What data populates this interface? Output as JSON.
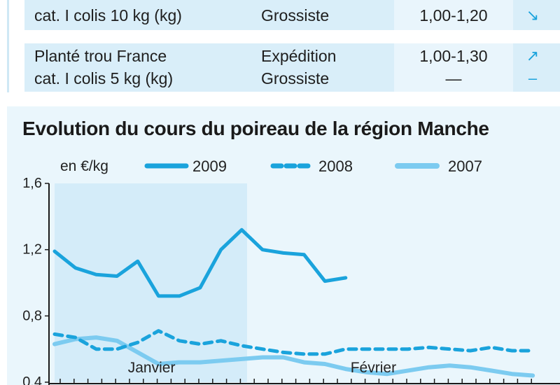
{
  "table": {
    "rows": [
      {
        "product_lines": [
          "cat. I colis 10 kg (kg)"
        ],
        "stage_lines": [
          "Grossiste"
        ],
        "price_lines": [
          "1,00-1,20"
        ],
        "trend_lines": [
          "↘"
        ]
      },
      {
        "product_lines": [
          "Planté trou France",
          "cat. I colis 5 kg (kg)"
        ],
        "stage_lines": [
          "Expédition",
          "Grossiste"
        ],
        "price_lines": [
          "1,00-1,30",
          "—"
        ],
        "trend_lines": [
          "↗",
          "–"
        ]
      }
    ]
  },
  "chart_data": {
    "type": "line",
    "title": "Evolution du cours du poireau de la région Manche",
    "unit_label": "en €/kg",
    "ylim": [
      0.4,
      1.6
    ],
    "yticks": [
      "1,6",
      "1,2",
      "0,8",
      "0,4"
    ],
    "ytick_values": [
      1.6,
      1.2,
      0.8,
      0.4
    ],
    "x_period_labels": [
      "Janvier",
      "Février"
    ],
    "x_period_centers": [
      7,
      23
    ],
    "x_count": 35,
    "legend_position": "top",
    "colors": {
      "2009": "#1aa3dc",
      "2008": "#1aa3dc",
      "2007": "#7ccbf0",
      "shade": "#d4ecf9"
    },
    "series": [
      {
        "name": "2009",
        "style": "solid",
        "x": [
          0,
          1.5,
          3,
          4.5,
          6,
          7.5,
          9,
          10.5,
          12,
          13.5,
          15,
          16.5,
          18,
          19.5,
          21
        ],
        "values": [
          1.19,
          1.09,
          1.05,
          1.04,
          1.13,
          0.92,
          0.92,
          0.97,
          1.2,
          1.32,
          1.2,
          1.18,
          1.17,
          1.01,
          1.03
        ]
      },
      {
        "name": "2008",
        "style": "dashed",
        "x": [
          0,
          1.5,
          3,
          4.5,
          6,
          7.5,
          9,
          10.5,
          12,
          13.5,
          15,
          16.5,
          18,
          19.5,
          21,
          22.5,
          24,
          25.5,
          27,
          28.5,
          30,
          31.5,
          33,
          34.5
        ],
        "values": [
          0.69,
          0.67,
          0.6,
          0.6,
          0.64,
          0.71,
          0.65,
          0.63,
          0.65,
          0.62,
          0.6,
          0.58,
          0.57,
          0.57,
          0.6,
          0.6,
          0.6,
          0.6,
          0.61,
          0.6,
          0.59,
          0.61,
          0.59,
          0.59
        ]
      },
      {
        "name": "2007",
        "style": "solid-light",
        "x": [
          0,
          1.5,
          3,
          4.5,
          6,
          7.5,
          9,
          10.5,
          12,
          13.5,
          15,
          16.5,
          18,
          19.5,
          21,
          22.5,
          24,
          25.5,
          27,
          28.5,
          30,
          31.5,
          33,
          34.5
        ],
        "values": [
          0.63,
          0.66,
          0.67,
          0.65,
          0.58,
          0.51,
          0.52,
          0.52,
          0.53,
          0.54,
          0.55,
          0.55,
          0.52,
          0.51,
          0.48,
          0.46,
          0.45,
          0.47,
          0.49,
          0.5,
          0.49,
          0.47,
          0.45,
          0.44
        ]
      }
    ]
  }
}
